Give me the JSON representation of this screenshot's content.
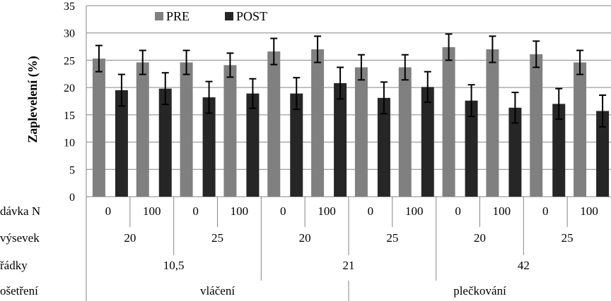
{
  "chart_data": {
    "type": "bar",
    "title": "",
    "xlabel": "",
    "ylabel": "Zaplevelení (%)",
    "ylim": [
      0,
      35
    ],
    "yticks": [
      0,
      5,
      10,
      15,
      20,
      25,
      30,
      35
    ],
    "grid": true,
    "legend_position": "top",
    "factor_rows": [
      {
        "name": "dávka N",
        "labels": [
          "0",
          "100",
          "0",
          "100",
          "0",
          "100",
          "0",
          "100",
          "0",
          "100",
          "0",
          "100"
        ]
      },
      {
        "name": "výsevek",
        "labels": [
          "20",
          "25",
          "20",
          "25",
          "20",
          "25"
        ]
      },
      {
        "name": "řádky",
        "labels": [
          "10,5",
          "21",
          "42"
        ]
      },
      {
        "name": "ošetření",
        "labels": [
          "vláčení",
          "plečkování"
        ]
      }
    ],
    "series": [
      {
        "name": "PRE",
        "color": "#808080",
        "values": [
          25.3,
          24.6,
          24.6,
          24.1,
          26.6,
          27.0,
          23.7,
          23.7,
          27.4,
          27.0,
          26.1,
          24.6
        ],
        "errors": [
          2.4,
          2.2,
          2.2,
          2.2,
          2.4,
          2.4,
          2.3,
          2.3,
          2.4,
          2.4,
          2.4,
          2.2
        ]
      },
      {
        "name": "POST",
        "color": "#262626",
        "values": [
          19.5,
          19.8,
          18.2,
          18.9,
          18.9,
          20.8,
          18.1,
          20.1,
          17.6,
          16.3,
          17.0,
          15.7
        ],
        "errors": [
          2.9,
          2.9,
          2.9,
          2.7,
          2.9,
          2.9,
          2.9,
          2.8,
          2.9,
          2.8,
          2.8,
          2.9
        ]
      }
    ]
  }
}
